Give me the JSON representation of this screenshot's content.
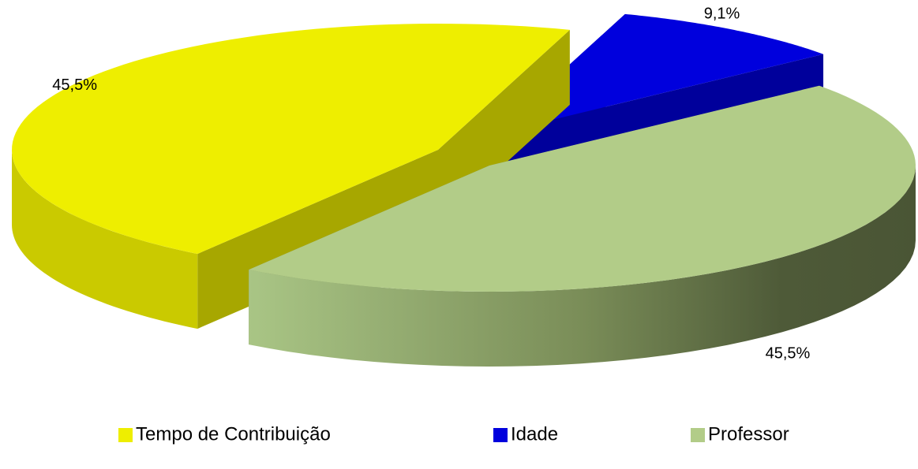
{
  "chart_data": {
    "type": "pie",
    "categories": [
      "Tempo de Contribuição",
      "Idade",
      "Professor"
    ],
    "values": [
      45.5,
      9.1,
      45.5
    ],
    "value_labels": [
      "45,5%",
      "9,1%",
      "45,5%"
    ],
    "colors": [
      "#eeee00",
      "#0000dd",
      "#b2cc88"
    ],
    "legend": "bottom"
  }
}
